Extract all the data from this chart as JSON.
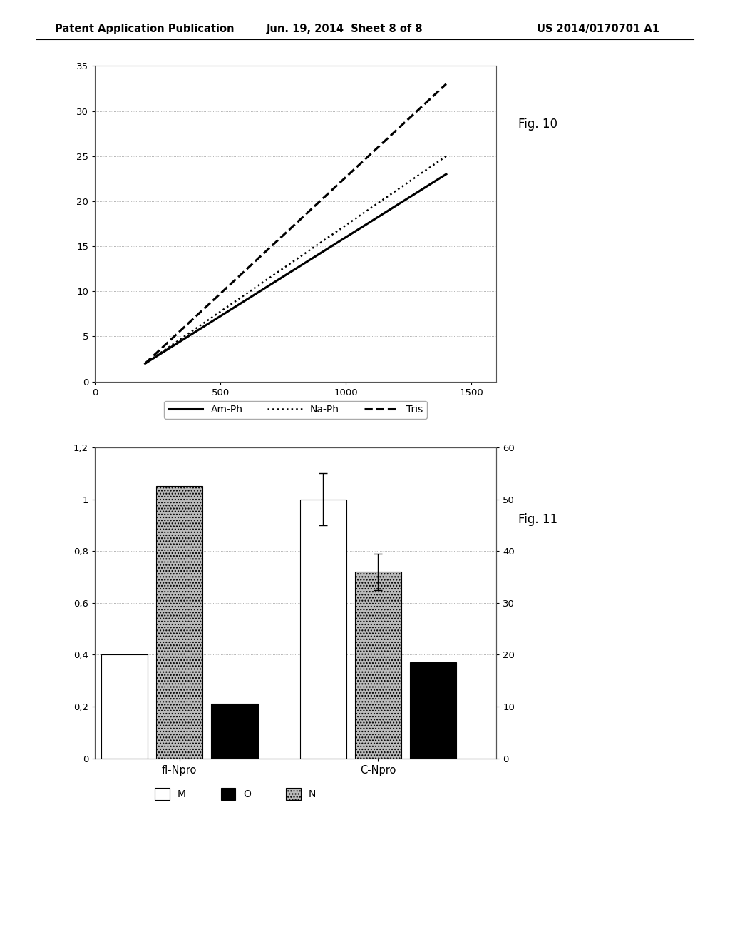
{
  "fig10": {
    "lines": {
      "Am_Ph": {
        "x": [
          200,
          1400
        ],
        "y": [
          2,
          23
        ],
        "color": "#000000",
        "linewidth": 2.2,
        "label": "Am-Ph",
        "linestyle": "solid"
      },
      "Na_Ph": {
        "x": [
          200,
          1400
        ],
        "y": [
          2,
          25
        ],
        "color": "#000000",
        "linewidth": 1.8,
        "label": "Na-Ph",
        "linestyle": "dotted"
      },
      "Tris": {
        "x": [
          200,
          1400
        ],
        "y": [
          2,
          33
        ],
        "color": "#000000",
        "linewidth": 2.2,
        "label": "Tris",
        "linestyle": "dashed"
      }
    },
    "xlim": [
      0,
      1600
    ],
    "ylim": [
      0,
      35
    ],
    "xticks": [
      0,
      500,
      1000,
      1500
    ],
    "yticks": [
      0,
      5,
      10,
      15,
      20,
      25,
      30,
      35
    ]
  },
  "fig11": {
    "groups": [
      "fl-Npro",
      "C-Npro"
    ],
    "bar_order": [
      "M",
      "N",
      "O"
    ],
    "bars": {
      "M": {
        "values": [
          0.4,
          1.0
        ],
        "color": "white",
        "edgecolor": "#000000",
        "hatch": ""
      },
      "O": {
        "values": [
          0.21,
          0.37
        ],
        "color": "#000000",
        "edgecolor": "#000000",
        "hatch": ""
      },
      "N": {
        "values": [
          1.05,
          0.72
        ],
        "color": "#bbbbbb",
        "edgecolor": "#000000",
        "hatch": "...."
      }
    },
    "error_bars": {
      "M": [
        null,
        0.1
      ],
      "O": [
        null,
        null
      ],
      "N": [
        null,
        0.07
      ]
    },
    "ylim_left": [
      0,
      1.2
    ],
    "ylim_right": [
      0,
      60
    ],
    "yticks_left": [
      0,
      0.2,
      0.4,
      0.6,
      0.8,
      1.0,
      1.2
    ],
    "ytick_labels_left": [
      "0",
      "0,2",
      "0,4",
      "0,6",
      "0,8",
      "1",
      "1,2"
    ],
    "yticks_right": [
      0,
      10,
      20,
      30,
      40,
      50,
      60
    ]
  },
  "header_left": "Patent Application Publication",
  "header_mid": "Jun. 19, 2014  Sheet 8 of 8",
  "header_right": "US 2014/0170701 A1",
  "fig10_label": "Fig. 10",
  "fig11_label": "Fig. 11",
  "background_color": "#ffffff"
}
